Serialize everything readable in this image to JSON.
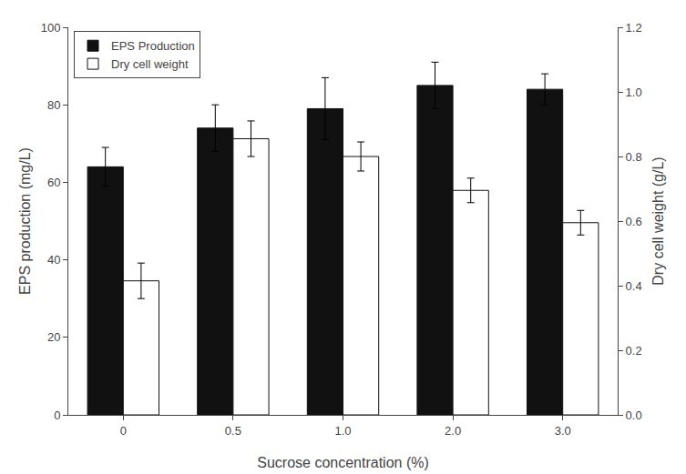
{
  "chart_data": {
    "type": "bar",
    "categories": [
      "0",
      "0.5",
      "1.0",
      "2.0",
      "3.0"
    ],
    "xlabel": "Sucrose concentration (%)",
    "ylabel": "EPS production (mg/L)",
    "y2label": "Dry cell weight (g/L)",
    "series": [
      {
        "name": "EPS Production",
        "color": "#111111",
        "values": [
          64,
          74,
          79,
          85,
          84
        ],
        "errors": [
          5,
          6,
          8,
          6,
          4
        ]
      },
      {
        "name": "Dry cell weight",
        "color": "#ffffff",
        "axis": "y2",
        "values": [
          0.415,
          0.855,
          0.8,
          0.695,
          0.595
        ],
        "errors": [
          0.055,
          0.055,
          0.045,
          0.038,
          0.038
        ]
      }
    ],
    "ylim": [
      0,
      100
    ],
    "yticks": [
      0,
      20,
      40,
      60,
      80,
      100
    ],
    "y2lim": [
      0.0,
      1.2
    ],
    "y2ticks": [
      {
        "value": 0,
        "label": "0.0"
      },
      0.2,
      0.4,
      0.6,
      0.8,
      {
        "value": 1,
        "label": "1.0"
      },
      1.2
    ],
    "legend": "upper left",
    "grid": false
  }
}
